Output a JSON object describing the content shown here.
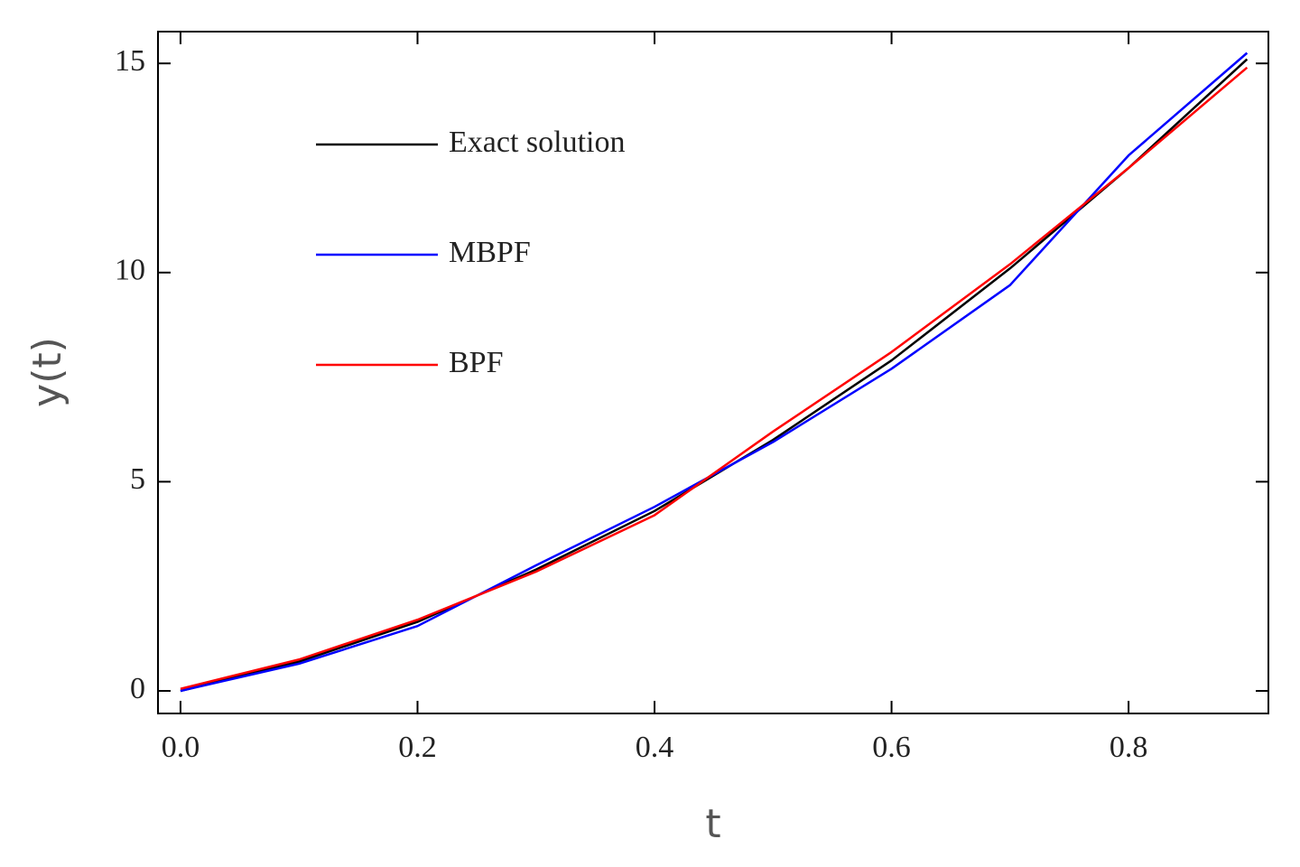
{
  "chart_data": {
    "type": "line",
    "x_label": "t",
    "y_label": "y(t)",
    "x": [
      0,
      0.1,
      0.2,
      0.3,
      0.4,
      0.5,
      0.6,
      0.7,
      0.8,
      0.9
    ],
    "series": [
      {
        "name": "Exact solution",
        "color": "#000000",
        "values": [
          0.0,
          0.7,
          1.65,
          2.9,
          4.3,
          6.0,
          7.9,
          10.1,
          12.5,
          15.1
        ]
      },
      {
        "name": "MBPF",
        "color": "#0000ff",
        "values": [
          0.0,
          0.65,
          1.55,
          3.0,
          4.4,
          5.95,
          7.7,
          9.7,
          12.8,
          15.25
        ]
      },
      {
        "name": "BPF",
        "color": "#ff0000",
        "values": [
          0.05,
          0.75,
          1.7,
          2.85,
          4.2,
          6.2,
          8.1,
          10.2,
          12.5,
          14.9
        ]
      }
    ],
    "xlim": [
      -0.019,
      0.918
    ],
    "ylim": [
      -0.54,
      15.76
    ],
    "xticks": [
      {
        "value": 0,
        "label": "0.0"
      },
      0.2,
      0.4,
      0.6,
      0.8
    ],
    "yticks": [
      0,
      5,
      10,
      15
    ],
    "legend": "upper left"
  }
}
